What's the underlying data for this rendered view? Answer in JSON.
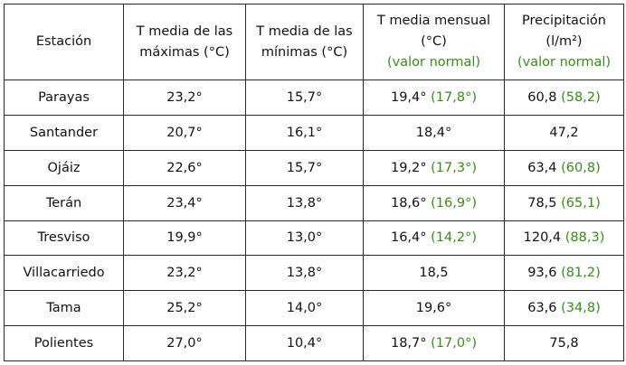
{
  "table": {
    "headers": {
      "station": "Estación",
      "tmax_line1": "T media de las",
      "tmax_line2": "máximas (°C)",
      "tmin_line1": "T media de las",
      "tmin_line2": "mínimas  (°C)",
      "tmean_line1": "T media mensual",
      "tmean_line2": "(°C)",
      "tmean_note": "(valor normal)",
      "precip_line1": "Precipitación",
      "precip_line2": "(l/m²)",
      "precip_note": "(valor normal)"
    },
    "rows": [
      {
        "station": "Parayas",
        "tmax": "23,2°",
        "tmin": "15,7°",
        "tmean": "19,4°",
        "tmean_normal": "(17,8°)",
        "precip": "60,8",
        "precip_normal": "(58,2)"
      },
      {
        "station": "Santander",
        "tmax": "20,7°",
        "tmin": "16,1°",
        "tmean": "18,4°",
        "tmean_normal": "",
        "precip": "47,2",
        "precip_normal": ""
      },
      {
        "station": "Ojáiz",
        "tmax": "22,6°",
        "tmin": "15,7°",
        "tmean": "19,2°",
        "tmean_normal": "(17,3°)",
        "precip": "63,4",
        "precip_normal": "(60,8)"
      },
      {
        "station": "Terán",
        "tmax": "23,4°",
        "tmin": "13,8°",
        "tmean": "18,6°",
        "tmean_normal": "(16,9°)",
        "precip": "78,5",
        "precip_normal": "(65,1)"
      },
      {
        "station": "Tresviso",
        "tmax": "19,9°",
        "tmin": "13,0°",
        "tmean": "16,4°",
        "tmean_normal": "(14,2°)",
        "precip": "120,4",
        "precip_normal": "(88,3)"
      },
      {
        "station": "Villacarriedo",
        "tmax": "23,2°",
        "tmin": "13,8°",
        "tmean": "18,5",
        "tmean_normal": "",
        "precip": "93,6",
        "precip_normal": "(81,2)"
      },
      {
        "station": "Tama",
        "tmax": "25,2°",
        "tmin": "14,0°",
        "tmean": "19,6°",
        "tmean_normal": "",
        "precip": "63,6",
        "precip_normal": "(34,8)"
      },
      {
        "station": "Polientes",
        "tmax": "27,0°",
        "tmin": "10,4°",
        "tmean": "18,7°",
        "tmean_normal": "(17,0°)",
        "precip": "75,8",
        "precip_normal": ""
      }
    ],
    "colors": {
      "normal_value": "#3a8a1c",
      "text": "#111111",
      "border": "#2a2a2a"
    }
  }
}
